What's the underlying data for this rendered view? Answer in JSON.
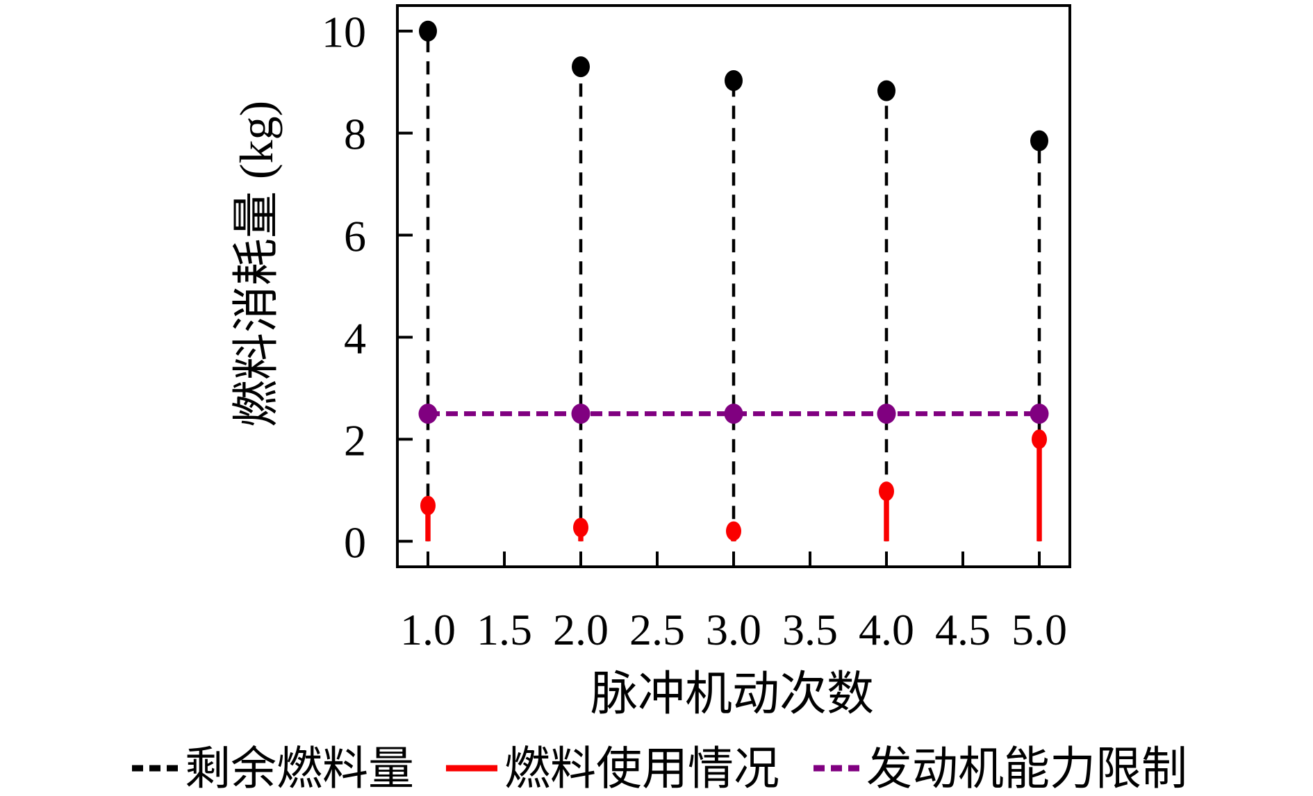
{
  "chart_data": {
    "type": "stem",
    "title": "",
    "xlabel": "脉冲机动次数",
    "ylabel": "燃料消耗量 (kg)",
    "x": [
      1.0,
      2.0,
      3.0,
      4.0,
      5.0
    ],
    "series": [
      {
        "name": "剩余燃料量",
        "plot_style": "stem",
        "line_style": "dashed",
        "color": "#000000",
        "values": [
          10.0,
          9.3,
          9.03,
          8.83,
          7.85
        ]
      },
      {
        "name": "燃料使用情况",
        "plot_style": "stem",
        "line_style": "solid",
        "color": "#fa0000",
        "values": [
          0.7,
          0.27,
          0.2,
          0.98,
          2.0
        ]
      },
      {
        "name": "发动机能力限制",
        "plot_style": "line",
        "line_style": "dashed",
        "color": "#800080",
        "values": [
          2.5,
          2.5,
          2.5,
          2.5,
          2.5
        ]
      }
    ],
    "xlim": [
      0.8,
      5.2
    ],
    "ylim": [
      -0.5,
      10.5
    ],
    "xticks": {
      "values": [
        1.0,
        1.5,
        2.0,
        2.5,
        3.0,
        3.5,
        4.0,
        4.5,
        5.0
      ],
      "labels": [
        "1.0",
        "1.5",
        "2.0",
        "2.5",
        "3.0",
        "3.5",
        "4.0",
        "4.5",
        "5.0"
      ]
    },
    "yticks": {
      "values": [
        0,
        2,
        4,
        6,
        8,
        10
      ],
      "labels": [
        "0",
        "2",
        "4",
        "6",
        "8",
        "10"
      ]
    },
    "grid": false,
    "frame": "box",
    "legend_position": "bottom",
    "axis_color": "#000000",
    "background_color": "#ffffff"
  }
}
